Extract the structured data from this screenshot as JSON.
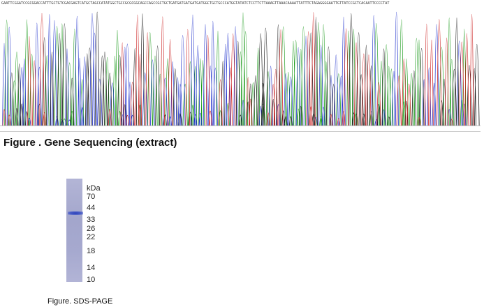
{
  "sequencing": {
    "sequence": "GAATTCGGATCCGCGGACCATTTGCTGTCGACGAGTCATGCTAGCCATATGGCTGCCGCGCGGCAGCCAGCCGCTGCTGATGATGATGATGATGGCTGCTGCCCATGGTATATCTCCTTCTTAAAGTTAAACAAAATTATTTCTAGAGGGGAATTGTTATCCGCTCACAATTCCCCTAT",
    "trace_colors": [
      "#1a9a1a",
      "#2233cc",
      "#111111",
      "#cc2222"
    ],
    "caption": "Figure . Gene Sequencing (extract)"
  },
  "sds_page": {
    "unit_label": "kDa",
    "markers": [
      "70",
      "44",
      "33",
      "26",
      "22",
      "18",
      "14",
      "10"
    ],
    "band_marker": "44",
    "caption": "Figure. SDS-PAGE"
  }
}
